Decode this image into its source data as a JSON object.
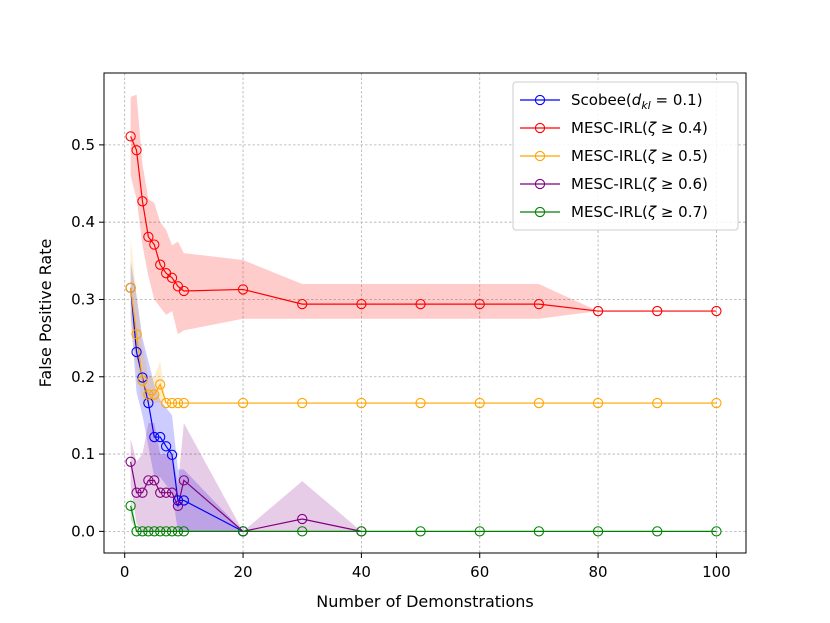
{
  "chart_data": {
    "type": "line",
    "title": "",
    "xlabel": "Number of Demonstrations",
    "ylabel": "False Positive Rate",
    "xlim": [
      -3.5,
      105
    ],
    "ylim": [
      -0.028,
      0.593
    ],
    "xticks": [
      0,
      20,
      40,
      60,
      80,
      100
    ],
    "yticks": [
      0.0,
      0.1,
      0.2,
      0.3,
      0.4,
      0.5
    ],
    "ytick_labels": [
      "0.0",
      "0.1",
      "0.2",
      "0.3",
      "0.4",
      "0.5"
    ],
    "grid": true,
    "legend_position": "top-right",
    "series": [
      {
        "name": "Scobee(d_kl = 0.1)",
        "legend_parts": {
          "prefix": "Scobee(",
          "var": "d",
          "sub": "kl",
          "suffix": " = 0.1)"
        },
        "color": "#0000ff",
        "x": [
          1,
          2,
          3,
          4,
          5,
          6,
          7,
          8,
          9,
          10,
          20
        ],
        "y": [
          0.315,
          0.232,
          0.199,
          0.166,
          0.122,
          0.122,
          0.11,
          0.099,
          0.04,
          0.04,
          0.0
        ],
        "lower": [
          0.28,
          0.18,
          0.15,
          0.11,
          0.07,
          0.07,
          0.06,
          0.05,
          0.0,
          0.0,
          0.0
        ],
        "upper": [
          0.35,
          0.305,
          0.25,
          0.22,
          0.19,
          0.17,
          0.16,
          0.15,
          0.08,
          0.08,
          0.0
        ]
      },
      {
        "name": "MESC-IRL(ζ ≥ 0.4)",
        "legend_parts": {
          "prefix": "MESC-IRL(",
          "var": "ζ",
          "sub": "",
          "suffix": " ≥ 0.4)"
        },
        "color": "#ff0000",
        "x": [
          1,
          2,
          3,
          4,
          5,
          6,
          7,
          8,
          9,
          10,
          20,
          30,
          40,
          50,
          60,
          70,
          80,
          90,
          100
        ],
        "y": [
          0.511,
          0.493,
          0.427,
          0.381,
          0.371,
          0.345,
          0.334,
          0.328,
          0.317,
          0.311,
          0.313,
          0.294,
          0.294,
          0.294,
          0.294,
          0.294,
          0.285,
          0.285,
          0.285
        ],
        "lower": [
          0.46,
          0.43,
          0.37,
          0.33,
          0.3,
          0.29,
          0.28,
          0.285,
          0.255,
          0.26,
          0.275,
          0.275,
          0.275,
          0.275,
          0.275,
          0.275,
          0.285,
          0.285,
          0.285
        ],
        "upper": [
          0.562,
          0.565,
          0.475,
          0.43,
          0.425,
          0.4,
          0.39,
          0.37,
          0.375,
          0.36,
          0.351,
          0.32,
          0.32,
          0.32,
          0.32,
          0.32,
          0.285,
          0.285,
          0.285
        ]
      },
      {
        "name": "MESC-IRL(ζ ≥ 0.5)",
        "legend_parts": {
          "prefix": "MESC-IRL(",
          "var": "ζ",
          "sub": "",
          "suffix": " ≥ 0.5)"
        },
        "color": "#ffa500",
        "x": [
          1,
          2,
          3,
          4,
          5,
          6,
          7,
          8,
          9,
          10,
          20,
          30,
          40,
          50,
          60,
          70,
          80,
          90,
          100
        ],
        "y": [
          0.315,
          0.255,
          0.195,
          0.177,
          0.177,
          0.19,
          0.166,
          0.166,
          0.166,
          0.166,
          0.166,
          0.166,
          0.166,
          0.166,
          0.166,
          0.166,
          0.166,
          0.166,
          0.166
        ],
        "lower": [
          0.26,
          0.21,
          0.165,
          0.166,
          0.166,
          0.166,
          0.166,
          0.166,
          0.166,
          0.166,
          0.166,
          0.166,
          0.166,
          0.166,
          0.166,
          0.166,
          0.166,
          0.166,
          0.166
        ],
        "upper": [
          0.38,
          0.305,
          0.24,
          0.2,
          0.2,
          0.22,
          0.166,
          0.166,
          0.166,
          0.166,
          0.166,
          0.166,
          0.166,
          0.166,
          0.166,
          0.166,
          0.166,
          0.166,
          0.166
        ]
      },
      {
        "name": "MESC-IRL(ζ ≥ 0.6)",
        "legend_parts": {
          "prefix": "MESC-IRL(",
          "var": "ζ",
          "sub": "",
          "suffix": " ≥ 0.6)"
        },
        "color": "#800080",
        "x": [
          1,
          2,
          3,
          4,
          5,
          6,
          7,
          8,
          9,
          10,
          20,
          30,
          40
        ],
        "y": [
          0.09,
          0.05,
          0.05,
          0.066,
          0.066,
          0.05,
          0.05,
          0.05,
          0.033,
          0.066,
          0.0,
          0.016,
          0.0
        ],
        "lower": [
          0.06,
          0.01,
          0.0,
          0.0,
          0.0,
          0.0,
          0.0,
          0.0,
          0.0,
          0.0,
          0.0,
          0.0,
          0.0
        ],
        "upper": [
          0.12,
          0.09,
          0.1,
          0.14,
          0.14,
          0.1,
          0.1,
          0.1,
          0.06,
          0.14,
          0.0,
          0.065,
          0.0
        ]
      },
      {
        "name": "MESC-IRL(ζ ≥ 0.7)",
        "legend_parts": {
          "prefix": "MESC-IRL(",
          "var": "ζ",
          "sub": "",
          "suffix": " ≥ 0.7)"
        },
        "color": "#008000",
        "x": [
          1,
          2,
          3,
          4,
          5,
          6,
          7,
          8,
          9,
          10,
          20,
          30,
          40,
          50,
          60,
          70,
          80,
          90,
          100
        ],
        "y": [
          0.033,
          0.0,
          0.0,
          0.0,
          0.0,
          0.0,
          0.0,
          0.0,
          0.0,
          0.0,
          0.0,
          0.0,
          0.0,
          0.0,
          0.0,
          0.0,
          0.0,
          0.0,
          0.0
        ],
        "lower": [
          0.015,
          0.0,
          0.0,
          0.0,
          0.0,
          0.0,
          0.0,
          0.0,
          0.0,
          0.0,
          0.0,
          0.0,
          0.0,
          0.0,
          0.0,
          0.0,
          0.0,
          0.0,
          0.0
        ],
        "upper": [
          0.05,
          0.0,
          0.0,
          0.0,
          0.0,
          0.0,
          0.0,
          0.0,
          0.0,
          0.0,
          0.0,
          0.0,
          0.0,
          0.0,
          0.0,
          0.0,
          0.0,
          0.0,
          0.0
        ]
      }
    ]
  }
}
